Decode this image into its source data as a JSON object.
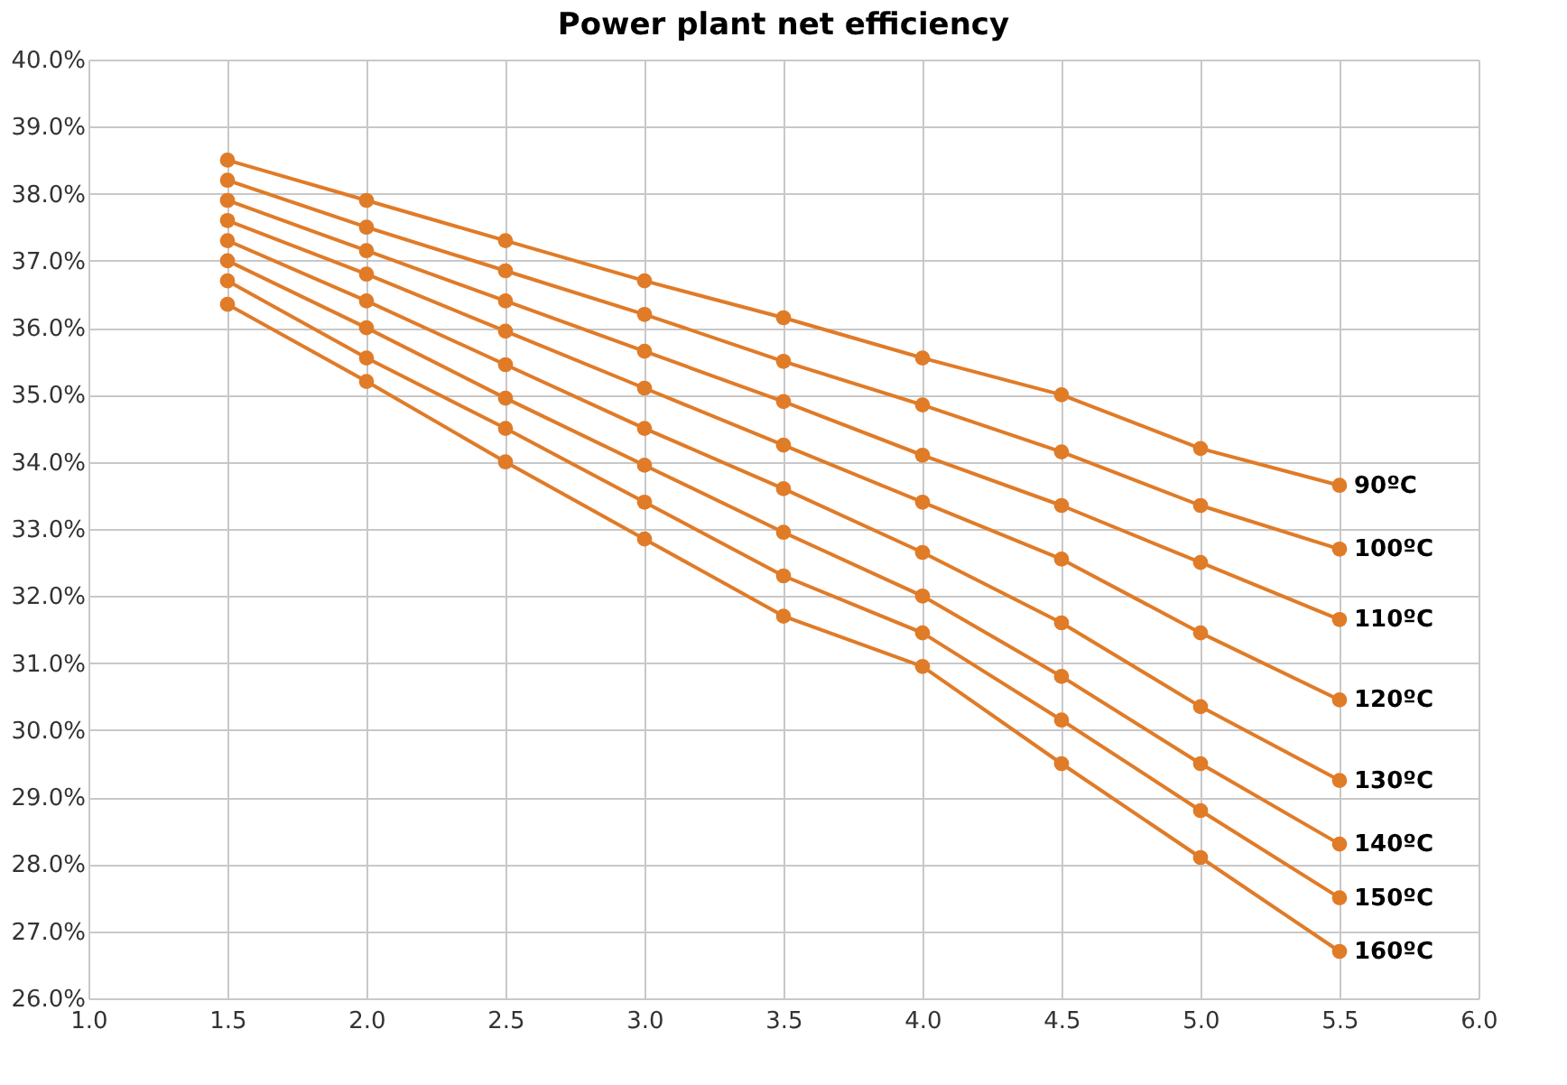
{
  "chart_data": {
    "type": "line",
    "title": "Power plant net efficiency",
    "x": [
      1.5,
      2.0,
      2.5,
      3.0,
      3.5,
      4.0,
      4.5,
      5.0,
      5.5
    ],
    "series": [
      {
        "name": "90ºC",
        "color": "#e07b28",
        "values": [
          38.5,
          37.9,
          37.3,
          36.7,
          36.15,
          35.55,
          35.0,
          34.2,
          33.65
        ]
      },
      {
        "name": "100ºC",
        "color": "#e07b28",
        "values": [
          38.2,
          37.5,
          36.85,
          36.2,
          35.5,
          34.85,
          34.15,
          33.35,
          32.7
        ]
      },
      {
        "name": "110ºC",
        "color": "#e07b28",
        "values": [
          37.9,
          37.15,
          36.4,
          35.65,
          34.9,
          34.1,
          33.35,
          32.5,
          31.65
        ]
      },
      {
        "name": "120ºC",
        "color": "#e07b28",
        "values": [
          37.6,
          36.8,
          35.95,
          35.1,
          34.25,
          33.4,
          32.55,
          31.45,
          30.45
        ]
      },
      {
        "name": "130ºC",
        "color": "#e07b28",
        "values": [
          37.3,
          36.4,
          35.45,
          34.5,
          33.6,
          32.65,
          31.6,
          30.35,
          29.25
        ]
      },
      {
        "name": "140ºC",
        "color": "#e07b28",
        "values": [
          37.0,
          36.0,
          34.95,
          33.95,
          32.95,
          32.0,
          30.8,
          29.5,
          28.3
        ]
      },
      {
        "name": "150ºC",
        "color": "#e07b28",
        "values": [
          36.7,
          35.55,
          34.5,
          33.4,
          32.3,
          31.45,
          30.15,
          28.8,
          27.5
        ]
      },
      {
        "name": "160ºC",
        "color": "#e07b28",
        "values": [
          36.35,
          35.2,
          34.0,
          32.85,
          31.7,
          30.95,
          29.5,
          28.1,
          26.7
        ]
      }
    ],
    "xlim": [
      1.0,
      6.0
    ],
    "xticks": [
      {
        "value": 1.0,
        "label": "1.0"
      },
      1.5,
      {
        "value": 2.0,
        "label": "2.0"
      },
      2.5,
      {
        "value": 3.0,
        "label": "3.0"
      },
      3.5,
      {
        "value": 4.0,
        "label": "4.0"
      },
      4.5,
      {
        "value": 5.0,
        "label": "5.0"
      },
      5.5,
      {
        "value": 6.0,
        "label": "6.0"
      }
    ],
    "ylim": [
      26.0,
      40.0
    ],
    "yticks": [
      {
        "value": 26,
        "label": "26.0%"
      },
      {
        "value": 27,
        "label": "27.0%"
      },
      {
        "value": 28,
        "label": "28.0%"
      },
      {
        "value": 29,
        "label": "29.0%"
      },
      {
        "value": 30,
        "label": "30.0%"
      },
      {
        "value": 31,
        "label": "31.0%"
      },
      {
        "value": 32,
        "label": "32.0%"
      },
      {
        "value": 33,
        "label": "33.0%"
      },
      {
        "value": 34,
        "label": "34.0%"
      },
      {
        "value": 35,
        "label": "35.0%"
      },
      {
        "value": 36,
        "label": "36.0%"
      },
      {
        "value": 37,
        "label": "37.0%"
      },
      {
        "value": 38,
        "label": "38.0%"
      },
      {
        "value": 39,
        "label": "39.0%"
      },
      {
        "value": 40,
        "label": "40.0%"
      }
    ],
    "grid": true,
    "legend": false,
    "marker": "circle",
    "line_style": "solid"
  }
}
